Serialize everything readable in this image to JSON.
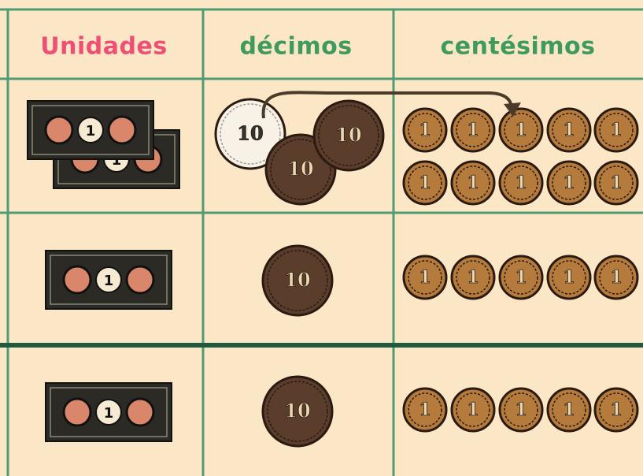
{
  "table": {
    "headers": [
      "Unidades",
      "décimos",
      "centésimos"
    ],
    "rows": [
      {
        "bills": [
          "1",
          "1"
        ],
        "dimes": [
          "10",
          "10",
          "10"
        ],
        "cents": [
          "1",
          "1",
          "1",
          "1",
          "1",
          "1",
          "1",
          "1",
          "1",
          "1"
        ]
      },
      {
        "bills": [
          "1"
        ],
        "dimes": [
          "10"
        ],
        "cents": [
          "1",
          "1",
          "1",
          "1",
          "1"
        ]
      },
      {
        "bills": [
          "1"
        ],
        "dimes": [
          "10"
        ],
        "cents": [
          "1",
          "1",
          "1",
          "1",
          "1"
        ]
      }
    ]
  }
}
